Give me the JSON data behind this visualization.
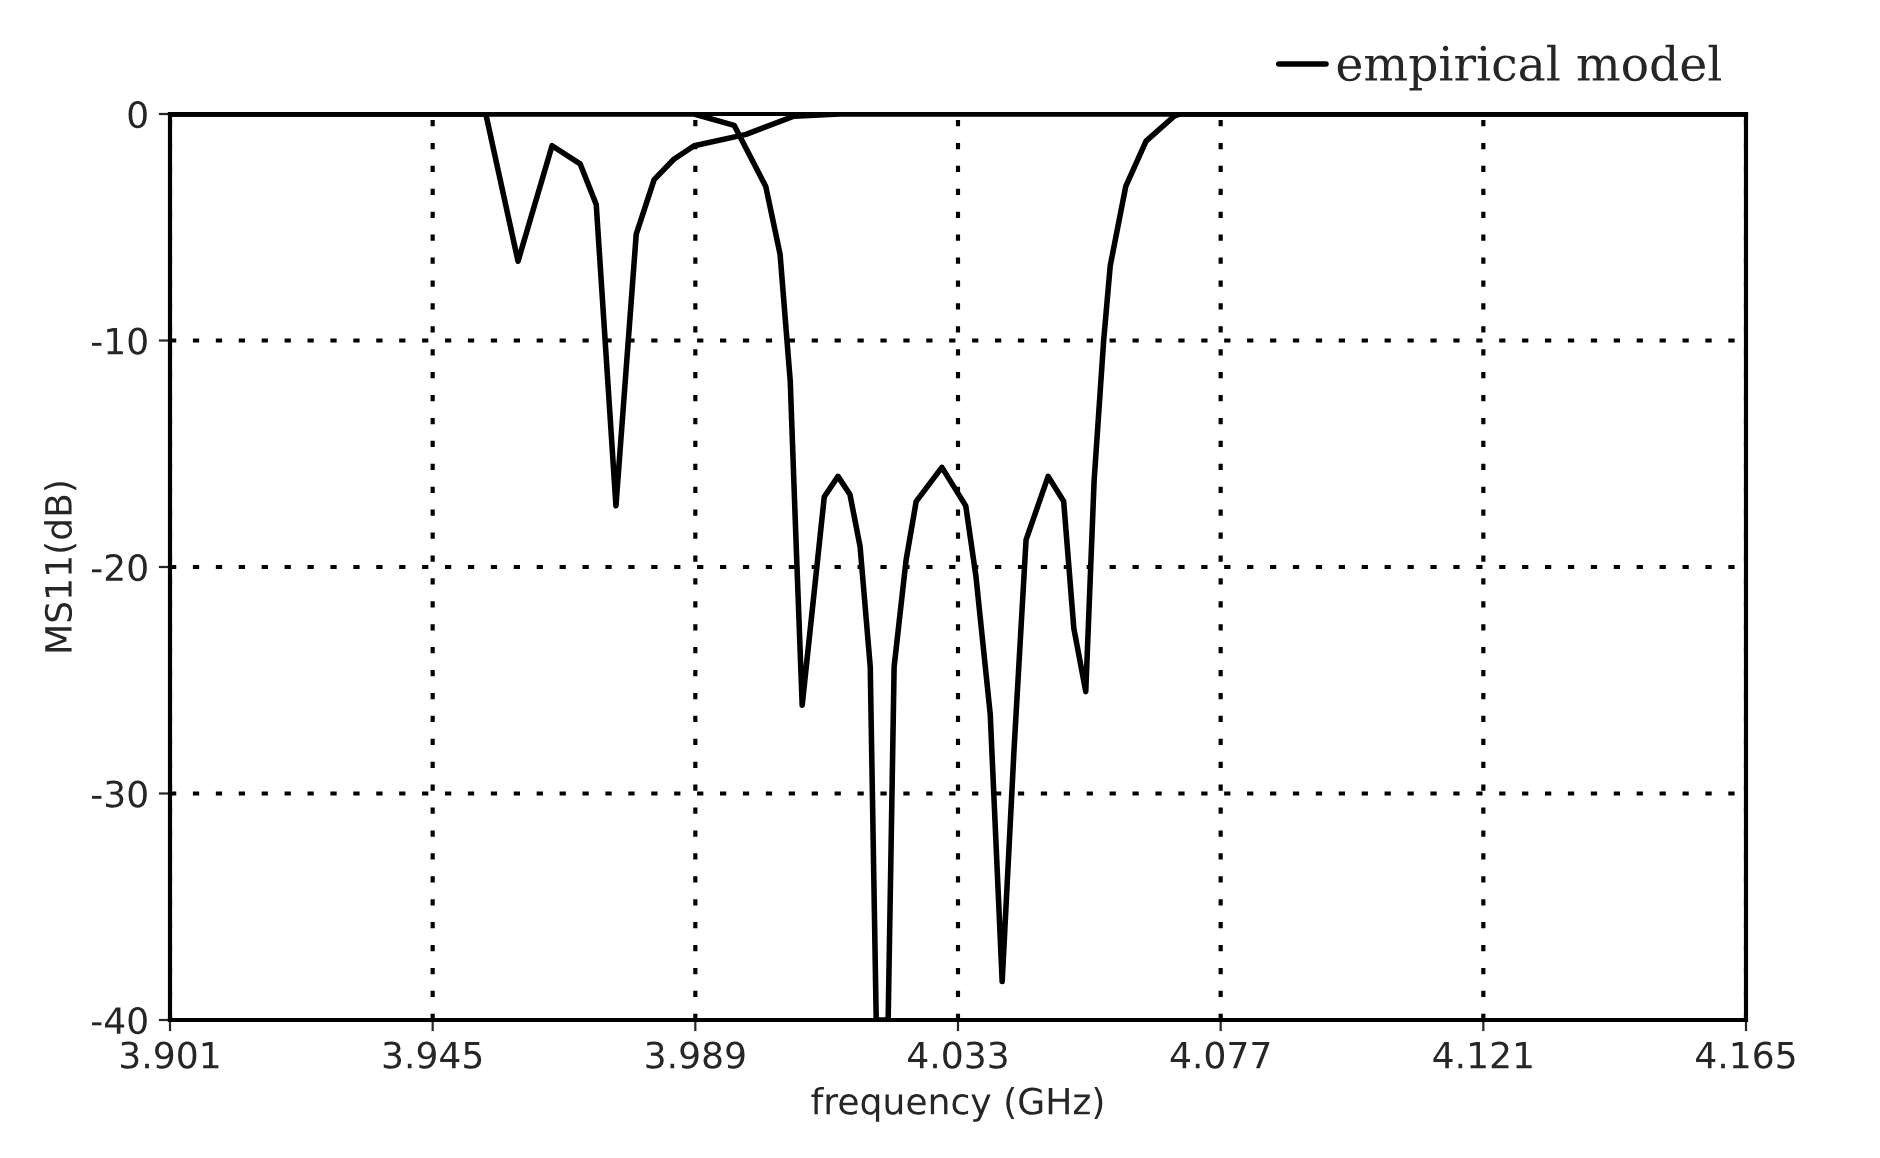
{
  "chart_data": {
    "type": "line",
    "xlabel": "frequency (GHz)",
    "ylabel": "MS11(dB)",
    "xlim": [
      3.901,
      4.165
    ],
    "xticks": [
      3.901,
      3.945,
      3.989,
      4.033,
      4.077,
      4.121,
      4.165
    ],
    "ylim": [
      -40,
      0
    ],
    "yticks": [
      {
        "value": 0,
        "label": "0"
      },
      {
        "value": -10,
        "label": "-10"
      },
      {
        "value": -20,
        "label": "-20"
      },
      {
        "value": -30,
        "label": "-30"
      },
      {
        "value": -40,
        "label": "-40"
      }
    ],
    "grid": true,
    "legend": "top right",
    "line_style": "solid",
    "series": [
      {
        "color": "#000000",
        "x": [
          3.901,
          3.9539,
          3.9593,
          3.965,
          3.9697,
          3.9724,
          3.9757,
          3.9791,
          3.9821,
          3.9854,
          3.9888,
          3.9975,
          4.0055,
          4.0132,
          4.165
        ],
        "values": [
          0,
          0,
          -6.5,
          -1.4,
          -2.2,
          -4.0,
          -17.3,
          -5.3,
          -2.9,
          -2.0,
          -1.4,
          -0.9,
          -0.1,
          0,
          0
        ]
      },
      {
        "name": "empirical model",
        "color": "#000000",
        "x": [
          3.901,
          3.9888,
          3.9955,
          4.0008,
          4.0032,
          4.0049,
          4.0059,
          4.0069,
          4.0106,
          4.0129,
          4.0149,
          4.0166,
          4.0183,
          4.0193,
          4.0213,
          4.0223,
          4.0243,
          4.026,
          4.0303,
          4.0343,
          4.036,
          4.0384,
          4.0404,
          4.0424,
          4.0444,
          4.0481,
          4.0507,
          4.0524,
          4.0544,
          4.0558,
          4.0574,
          4.0585,
          4.0611,
          4.0645,
          4.0692,
          4.0702,
          4.165
        ],
        "values": [
          0,
          0,
          -0.5,
          -3.2,
          -6.2,
          -11.8,
          -19.1,
          -26.1,
          -16.9,
          -16.0,
          -16.8,
          -19.1,
          -24.4,
          -40,
          -40,
          -24.4,
          -19.7,
          -17.1,
          -15.6,
          -17.3,
          -20.4,
          -26.5,
          -38.3,
          -28,
          -18.8,
          -16.0,
          -17.1,
          -22.7,
          -25.5,
          -16.2,
          -10,
          -6.7,
          -3.2,
          -1.2,
          -0.1,
          0,
          0
        ]
      }
    ]
  }
}
